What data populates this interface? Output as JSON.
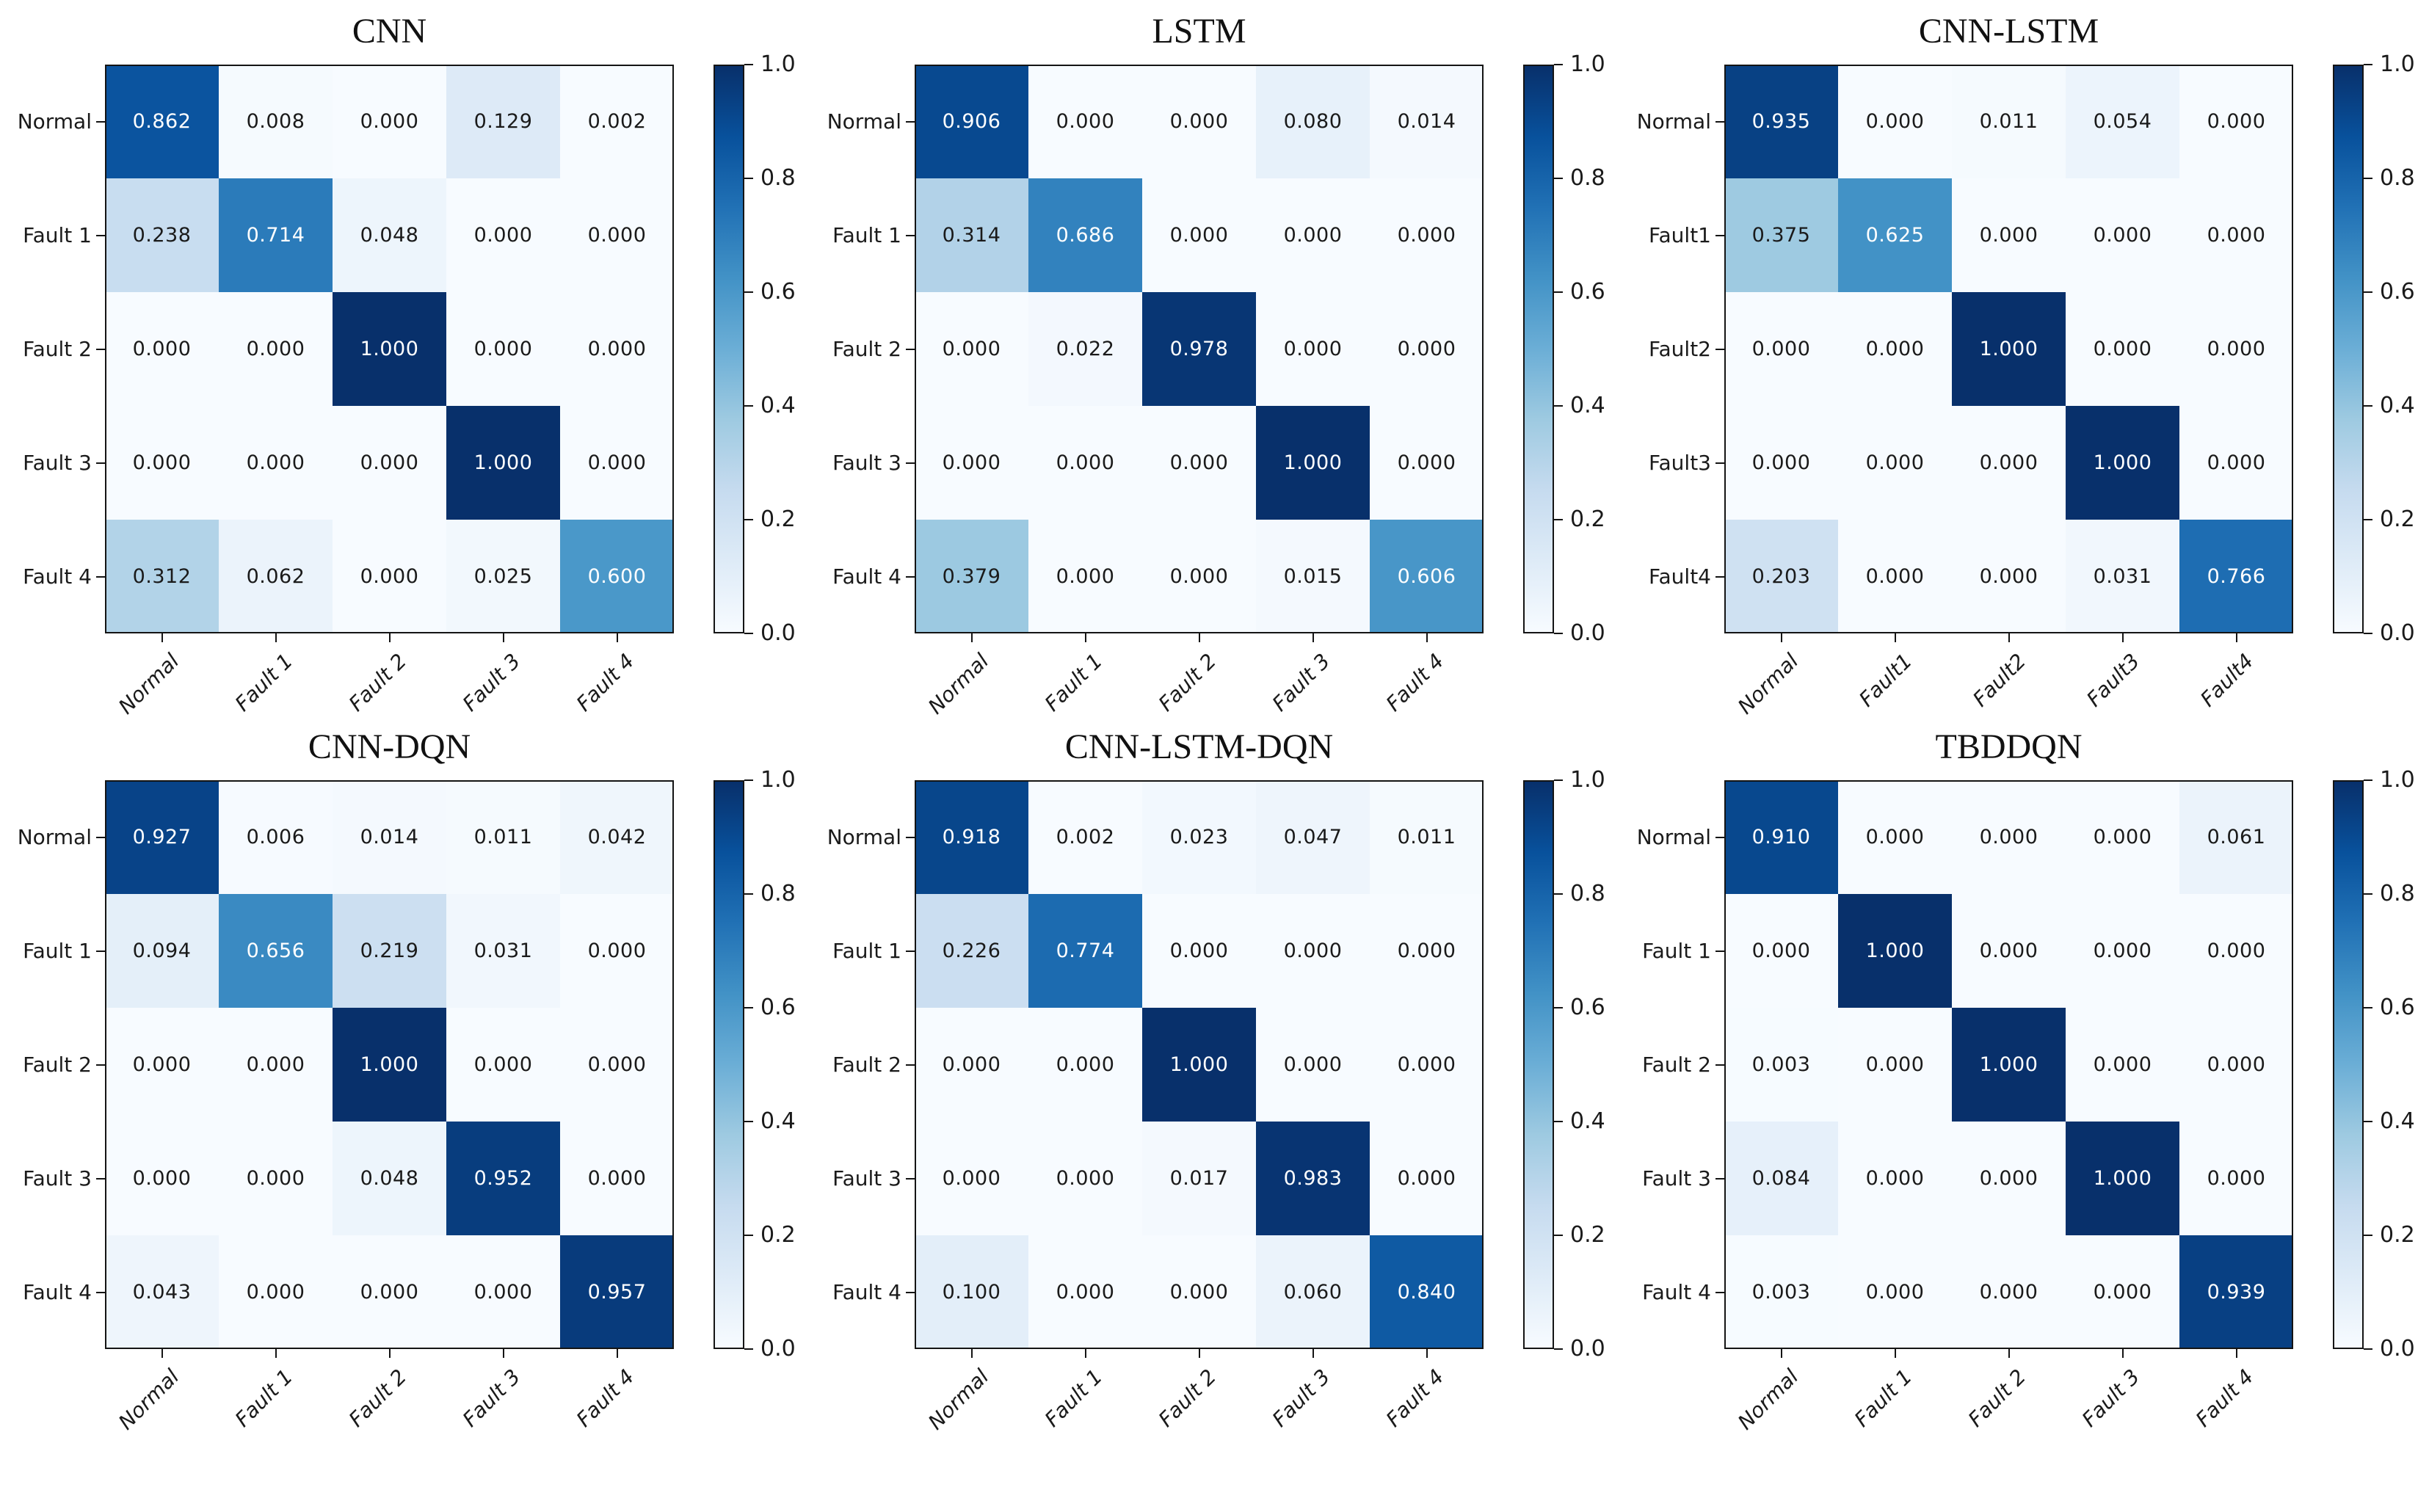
{
  "figure": {
    "background": "#ffffff",
    "text_color": "#1a1a1a",
    "spine_color": "#141414",
    "colormap": {
      "name": "Blues",
      "anchors": [
        [
          0.0,
          [
            247,
            251,
            255
          ]
        ],
        [
          0.125,
          [
            222,
            235,
            247
          ]
        ],
        [
          0.25,
          [
            198,
            219,
            239
          ]
        ],
        [
          0.375,
          [
            158,
            202,
            225
          ]
        ],
        [
          0.5,
          [
            107,
            174,
            214
          ]
        ],
        [
          0.625,
          [
            66,
            146,
            198
          ]
        ],
        [
          0.75,
          [
            33,
            113,
            181
          ]
        ],
        [
          0.875,
          [
            8,
            81,
            156
          ]
        ],
        [
          1.0,
          [
            8,
            48,
            107
          ]
        ]
      ]
    },
    "value_format_decimals": 3,
    "white_text_threshold": 0.5,
    "colorbar": {
      "tick_values": [
        0.0,
        0.2,
        0.4,
        0.6,
        0.8,
        1.0
      ],
      "tick_labels": [
        "0.0",
        "0.2",
        "0.4",
        "0.6",
        "0.8",
        "1.0"
      ]
    }
  },
  "chart_data": [
    {
      "type": "heatmap",
      "title": "CNN",
      "x_labels": [
        "Normal",
        "Fault 1",
        "Fault 2",
        "Fault 3",
        "Fault 4"
      ],
      "y_labels": [
        "Normal",
        "Fault 1",
        "Fault 2",
        "Fault 3",
        "Fault 4"
      ],
      "vmin": 0.0,
      "vmax": 1.0,
      "values": [
        [
          0.862,
          0.008,
          0.0,
          0.129,
          0.002
        ],
        [
          0.238,
          0.714,
          0.048,
          0.0,
          0.0
        ],
        [
          0.0,
          0.0,
          1.0,
          0.0,
          0.0
        ],
        [
          0.0,
          0.0,
          0.0,
          1.0,
          0.0
        ],
        [
          0.312,
          0.062,
          0.0,
          0.025,
          0.6
        ]
      ]
    },
    {
      "type": "heatmap",
      "title": "LSTM",
      "x_labels": [
        "Normal",
        "Fault 1",
        "Fault 2",
        "Fault 3",
        "Fault 4"
      ],
      "y_labels": [
        "Normal",
        "Fault 1",
        "Fault 2",
        "Fault 3",
        "Fault 4"
      ],
      "vmin": 0.0,
      "vmax": 1.0,
      "values": [
        [
          0.906,
          0.0,
          0.0,
          0.08,
          0.014
        ],
        [
          0.314,
          0.686,
          0.0,
          0.0,
          0.0
        ],
        [
          0.0,
          0.022,
          0.978,
          0.0,
          0.0
        ],
        [
          0.0,
          0.0,
          0.0,
          1.0,
          0.0
        ],
        [
          0.379,
          0.0,
          0.0,
          0.015,
          0.606
        ]
      ]
    },
    {
      "type": "heatmap",
      "title": "CNN-LSTM",
      "x_labels": [
        "Normal",
        "Fault1",
        "Fault2",
        "Fault3",
        "Fault4"
      ],
      "y_labels": [
        "Normal",
        "Fault1",
        "Fault2",
        "Fault3",
        "Fault4"
      ],
      "vmin": 0.0,
      "vmax": 1.0,
      "values": [
        [
          0.935,
          0.0,
          0.011,
          0.054,
          0.0
        ],
        [
          0.375,
          0.625,
          0.0,
          0.0,
          0.0
        ],
        [
          0.0,
          0.0,
          1.0,
          0.0,
          0.0
        ],
        [
          0.0,
          0.0,
          0.0,
          1.0,
          0.0
        ],
        [
          0.203,
          0.0,
          0.0,
          0.031,
          0.766
        ]
      ]
    },
    {
      "type": "heatmap",
      "title": "CNN-DQN",
      "x_labels": [
        "Normal",
        "Fault 1",
        "Fault 2",
        "Fault 3",
        "Fault 4"
      ],
      "y_labels": [
        "Normal",
        "Fault 1",
        "Fault 2",
        "Fault 3",
        "Fault 4"
      ],
      "vmin": 0.0,
      "vmax": 1.0,
      "values": [
        [
          0.927,
          0.006,
          0.014,
          0.011,
          0.042
        ],
        [
          0.094,
          0.656,
          0.219,
          0.031,
          0.0
        ],
        [
          0.0,
          0.0,
          1.0,
          0.0,
          0.0
        ],
        [
          0.0,
          0.0,
          0.048,
          0.952,
          0.0
        ],
        [
          0.043,
          0.0,
          0.0,
          0.0,
          0.957
        ]
      ]
    },
    {
      "type": "heatmap",
      "title": "CNN-LSTM-DQN",
      "x_labels": [
        "Normal",
        "Fault 1",
        "Fault 2",
        "Fault 3",
        "Fault 4"
      ],
      "y_labels": [
        "Normal",
        "Fault 1",
        "Fault 2",
        "Fault 3",
        "Fault 4"
      ],
      "vmin": 0.0,
      "vmax": 1.0,
      "values": [
        [
          0.918,
          0.002,
          0.023,
          0.047,
          0.011
        ],
        [
          0.226,
          0.774,
          0.0,
          0.0,
          0.0
        ],
        [
          0.0,
          0.0,
          1.0,
          0.0,
          0.0
        ],
        [
          0.0,
          0.0,
          0.017,
          0.983,
          0.0
        ],
        [
          0.1,
          0.0,
          0.0,
          0.06,
          0.84
        ]
      ]
    },
    {
      "type": "heatmap",
      "title": "TBDDQN",
      "x_labels": [
        "Normal",
        "Fault 1",
        "Fault 2",
        "Fault 3",
        "Fault 4"
      ],
      "y_labels": [
        "Normal",
        "Fault 1",
        "Fault 2",
        "Fault 3",
        "Fault 4"
      ],
      "vmin": 0.0,
      "vmax": 1.0,
      "values": [
        [
          0.91,
          0.0,
          0.0,
          0.0,
          0.061
        ],
        [
          0.0,
          1.0,
          0.0,
          0.0,
          0.0
        ],
        [
          0.003,
          0.0,
          1.0,
          0.0,
          0.0
        ],
        [
          0.084,
          0.0,
          0.0,
          1.0,
          0.0
        ],
        [
          0.003,
          0.0,
          0.0,
          0.0,
          0.939
        ]
      ]
    }
  ]
}
